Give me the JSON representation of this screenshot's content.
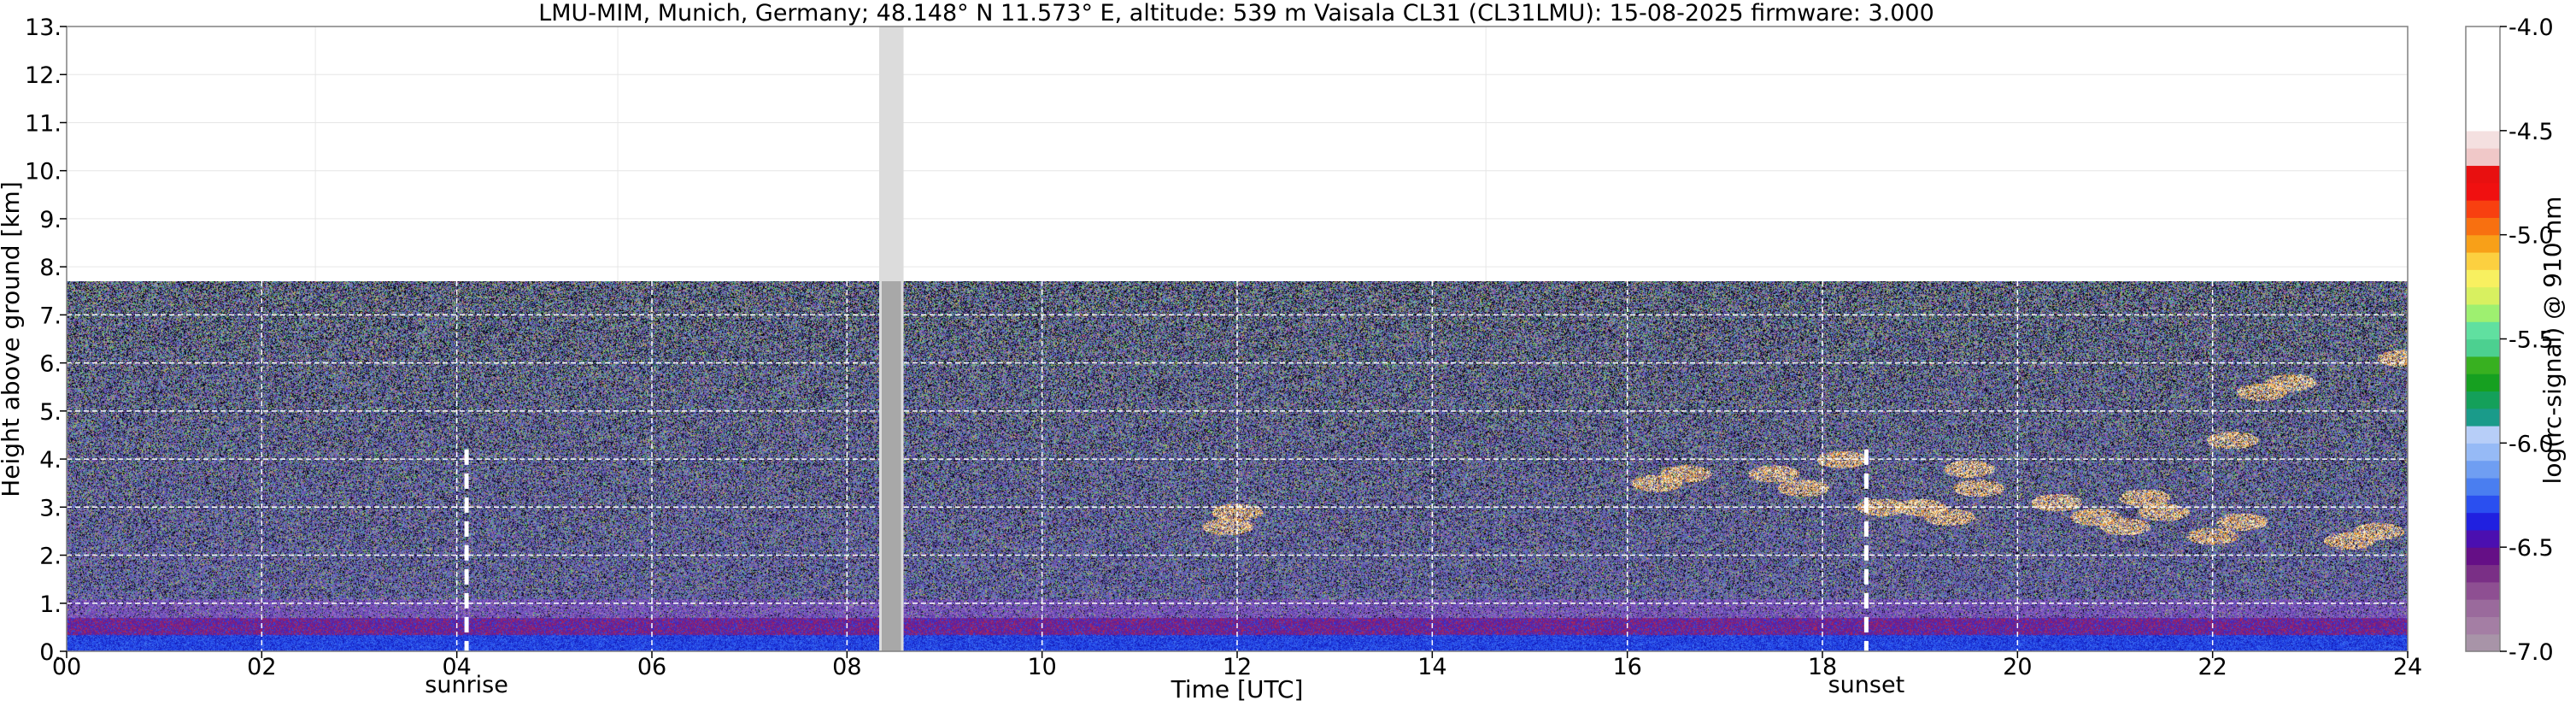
{
  "chart_data": {
    "type": "heatmap",
    "title": "LMU-MIM, Munich, Germany; 48.148° N 11.573° E, altitude: 539 m    Vaisala CL31 (CL31LMU): 15-08-2025    firmware: 3.000",
    "xlabel": "Time [UTC]",
    "ylabel": "Height above ground [km]",
    "colorbar_label": "log(rc-signal) @ 910 nm",
    "xlim": [
      0,
      24
    ],
    "ylim": [
      0,
      13
    ],
    "x_ticks": [
      0,
      2,
      4,
      6,
      8,
      10,
      12,
      14,
      16,
      18,
      20,
      22,
      24
    ],
    "x_tick_labels": [
      "00",
      "02",
      "04",
      "06",
      "08",
      "10",
      "12",
      "14",
      "16",
      "18",
      "20",
      "22",
      "24"
    ],
    "y_ticks": [
      0,
      1,
      2,
      3,
      4,
      5,
      6,
      7,
      8,
      9,
      10,
      11,
      12,
      13
    ],
    "y_tick_labels": [
      "0.",
      "1.",
      "2.",
      "3.",
      "4.",
      "5.",
      "6.",
      "7.",
      "8.",
      "9.",
      "10.",
      "11.",
      "12.",
      "13."
    ],
    "colorbar_ticks": [
      -4.0,
      -4.5,
      -5.0,
      -5.5,
      -6.0,
      -6.5,
      -7.0
    ],
    "colorbar_tick_labels": [
      "-4.0",
      "-4.5",
      "-5.0",
      "-5.5",
      "-6.0",
      "-6.5",
      "-7.0"
    ],
    "colorbar_range": [
      -7.0,
      -4.0
    ],
    "colorbar_colors": [
      "#a894a8",
      "#a47ea4",
      "#9a6a9c",
      "#8e4f92",
      "#7a2f86",
      "#650f86",
      "#4b0fb0",
      "#2020e0",
      "#2a4ff0",
      "#4a7ef0",
      "#6f9ef2",
      "#96baf6",
      "#b7cef8",
      "#1a9b8a",
      "#14a05a",
      "#16a020",
      "#38b020",
      "#4cd090",
      "#60e0a0",
      "#9ef070",
      "#d8f060",
      "#f8f060",
      "#fcd040",
      "#f8a018",
      "#f87010",
      "#f84010",
      "#f01010",
      "#e81010",
      "#f0c8c8",
      "#f4e0e0",
      "#ffffff",
      "#ffffff",
      "#ffffff",
      "#ffffff",
      "#ffffff",
      "#ffffff"
    ],
    "data_top_km": 7.7,
    "data_gap": {
      "start": 8.33,
      "end": 8.58
    },
    "markers": [
      {
        "label": "sunrise",
        "x": 4.1
      },
      {
        "label": "sunset",
        "x": 18.45
      }
    ],
    "grid": true,
    "cloud_patches": [
      {
        "x": 11.9,
        "y": 2.6
      },
      {
        "x": 12.0,
        "y": 2.9
      },
      {
        "x": 16.3,
        "y": 3.5
      },
      {
        "x": 16.6,
        "y": 3.7
      },
      {
        "x": 17.5,
        "y": 3.7
      },
      {
        "x": 17.8,
        "y": 3.4
      },
      {
        "x": 18.2,
        "y": 4.0
      },
      {
        "x": 18.6,
        "y": 3.0
      },
      {
        "x": 19.0,
        "y": 3.0
      },
      {
        "x": 19.3,
        "y": 2.8
      },
      {
        "x": 19.5,
        "y": 3.8
      },
      {
        "x": 19.6,
        "y": 3.4
      },
      {
        "x": 20.4,
        "y": 3.1
      },
      {
        "x": 20.8,
        "y": 2.8
      },
      {
        "x": 21.1,
        "y": 2.6
      },
      {
        "x": 21.3,
        "y": 3.2
      },
      {
        "x": 21.5,
        "y": 2.9
      },
      {
        "x": 22.0,
        "y": 2.4
      },
      {
        "x": 22.3,
        "y": 2.7
      },
      {
        "x": 22.2,
        "y": 4.4
      },
      {
        "x": 22.5,
        "y": 5.4
      },
      {
        "x": 22.8,
        "y": 5.6
      },
      {
        "x": 23.4,
        "y": 2.3
      },
      {
        "x": 23.7,
        "y": 2.5
      },
      {
        "x": 23.95,
        "y": 6.1
      }
    ]
  }
}
